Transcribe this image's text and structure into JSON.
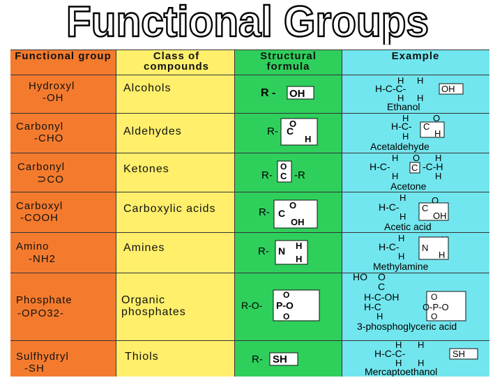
{
  "title": "Functional Groups",
  "headers": {
    "group": "Functional group",
    "class": "Class of compounds",
    "formula": "Structural formula",
    "example": "Example"
  },
  "rows": [
    {
      "group": "Hydroxyl",
      "group_formula": "-OH",
      "class": "Alcohols",
      "example": "Ethanol"
    },
    {
      "group": "Carbonyl",
      "group_formula": "-CHO",
      "class": "Aldehydes",
      "example": "Acetaldehyde"
    },
    {
      "group": "Carbonyl",
      "group_formula": "CO",
      "class": "Ketones",
      "example": "Acetone"
    },
    {
      "group": "Carboxyl",
      "group_formula": "-COOH",
      "class": "Carboxylic acids",
      "example": "Acetic acid"
    },
    {
      "group": "Amino",
      "group_formula": "-NH2",
      "class": "Amines",
      "example": "Methylamine"
    },
    {
      "group": "Phosphate",
      "group_formula": "-OPO32-",
      "class": "Organic phosphates",
      "example": "3-phosphoglyceric acid"
    },
    {
      "group": "Sulfhydryl",
      "group_formula": "-SH",
      "class": "Thiols",
      "example": "Mercaptoethanol"
    }
  ],
  "colors": {
    "group_col": "#f47b2e",
    "class_col": "#ffef6b",
    "formula_col": "#2fcf5c",
    "example_col": "#72e6ee"
  }
}
